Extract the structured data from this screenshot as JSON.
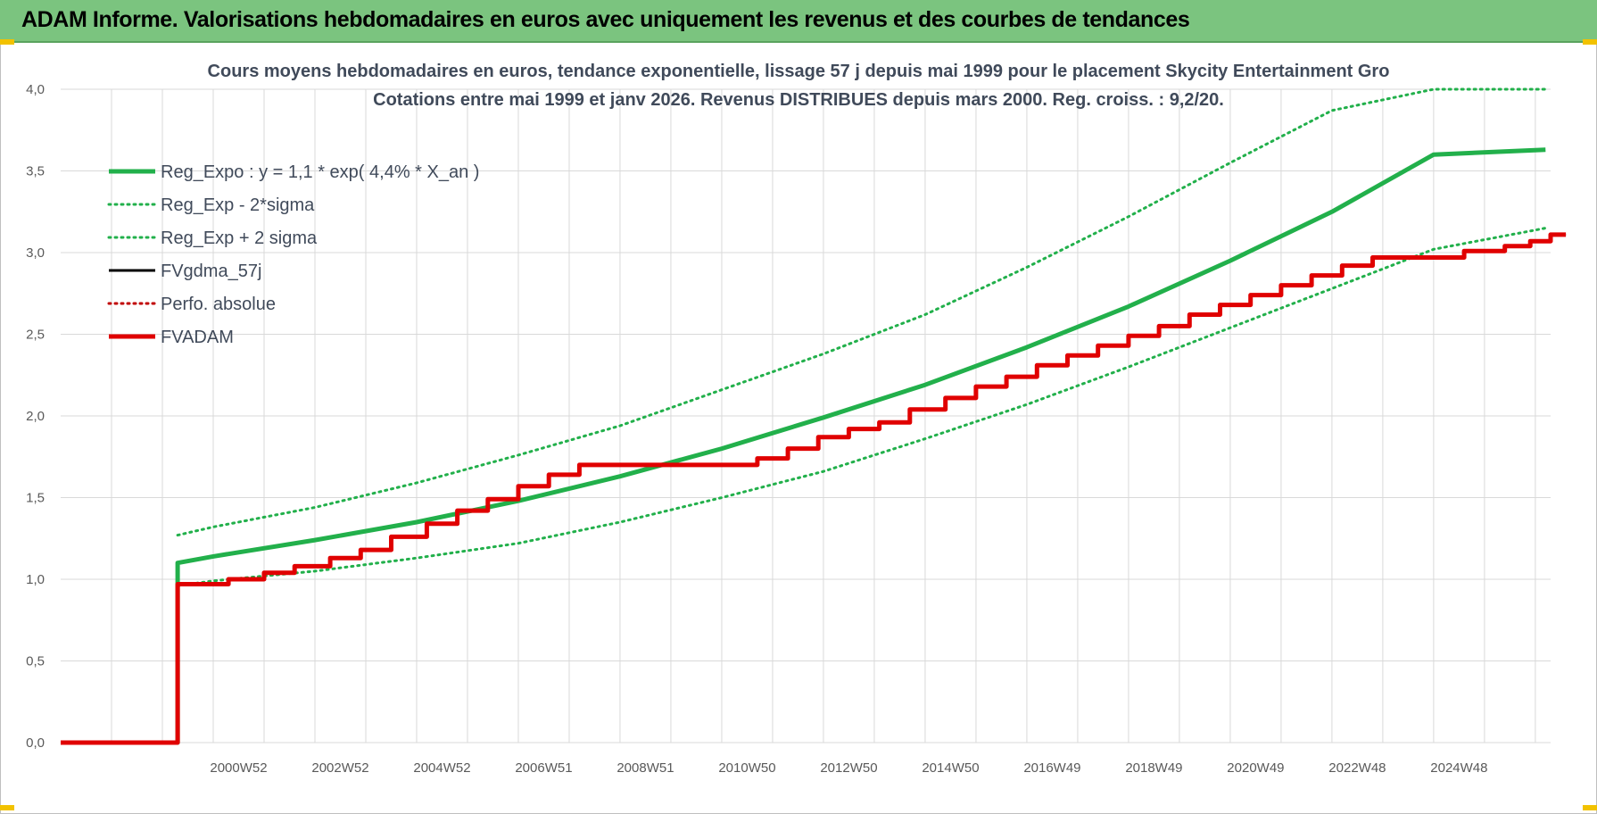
{
  "header": {
    "title": "ADAM Informe. Valorisations hebdomadaires en euros avec uniquement les revenus et des courbes de tendances"
  },
  "colors": {
    "header_bg": "#7bc47f",
    "trend_green": "#22b04b",
    "adam_red": "#e00000",
    "fvgdma_black": "#000000",
    "perfo_red": "#c00000",
    "grid": "#d9d9d9"
  },
  "chart_data": {
    "type": "line",
    "title": "Cours moyens hebdomadaires en euros, tendance exponentielle, lissage 57 j depuis mai 1999 pour le placement Skycity Entertainment Gro",
    "subtitle": "Cotations entre mai 1999 et janv 2026. Revenus DISTRIBUES depuis mars 2000. Reg. croiss. : 9,2/20.",
    "xlabel": "",
    "ylabel": "",
    "x_tick_labels": [
      "2000W52",
      "2002W52",
      "2004W52",
      "2006W51",
      "2008W51",
      "2010W50",
      "2012W50",
      "2014W50",
      "2016W49",
      "2018W49",
      "2020W49",
      "2022W48",
      "2024W48"
    ],
    "y_tick_labels": [
      "0,0",
      "0,5",
      "1,0",
      "1,5",
      "2,0",
      "2,5",
      "3,0",
      "3,5",
      "4,0"
    ],
    "ylim": [
      0,
      4
    ],
    "xlim": [
      1997.0,
      2026.3
    ],
    "grid": true,
    "legend_position": "top-left",
    "series": [
      {
        "name": "Reg_Expo : y = 1,1 * exp( 4,4% *  X_an )",
        "style": "solid-thick",
        "color": "#22b04b",
        "points": [
          [
            1997.0,
            0
          ],
          [
            1999.3,
            0
          ],
          [
            1999.3,
            1.1
          ],
          [
            2000,
            1.14
          ],
          [
            2002,
            1.24
          ],
          [
            2004,
            1.35
          ],
          [
            2006,
            1.48
          ],
          [
            2008,
            1.63
          ],
          [
            2010,
            1.8
          ],
          [
            2012,
            1.99
          ],
          [
            2014,
            2.19
          ],
          [
            2016,
            2.42
          ],
          [
            2018,
            2.67
          ],
          [
            2020,
            2.95
          ],
          [
            2022,
            3.25
          ],
          [
            2024,
            3.6
          ],
          [
            2026.2,
            3.63
          ]
        ]
      },
      {
        "name": "Reg_Exp - 2*sigma",
        "style": "dotted",
        "color": "#22b04b",
        "points": [
          [
            1999.3,
            0.96
          ],
          [
            2000,
            0.99
          ],
          [
            2002,
            1.05
          ],
          [
            2004,
            1.13
          ],
          [
            2006,
            1.22
          ],
          [
            2008,
            1.35
          ],
          [
            2010,
            1.5
          ],
          [
            2012,
            1.66
          ],
          [
            2014,
            1.86
          ],
          [
            2016,
            2.07
          ],
          [
            2018,
            2.3
          ],
          [
            2020,
            2.54
          ],
          [
            2022,
            2.78
          ],
          [
            2024,
            3.02
          ],
          [
            2026.2,
            3.15
          ]
        ]
      },
      {
        "name": "Reg_Exp + 2 sigma",
        "style": "dotted",
        "color": "#22b04b",
        "points": [
          [
            1999.3,
            1.27
          ],
          [
            2000,
            1.32
          ],
          [
            2002,
            1.44
          ],
          [
            2004,
            1.59
          ],
          [
            2006,
            1.76
          ],
          [
            2008,
            1.94
          ],
          [
            2010,
            2.16
          ],
          [
            2012,
            2.38
          ],
          [
            2014,
            2.62
          ],
          [
            2016,
            2.91
          ],
          [
            2018,
            3.22
          ],
          [
            2020,
            3.55
          ],
          [
            2022,
            3.87
          ],
          [
            2024,
            4.0
          ],
          [
            2026.2,
            4.0
          ]
        ]
      },
      {
        "name": "FVgdma_57j",
        "style": "solid-thin",
        "color": "#000000",
        "points": [
          [
            1999.3,
            0.97
          ],
          [
            2000.3,
            0.97
          ],
          [
            2000.3,
            1.0
          ],
          [
            2001.0,
            1.0
          ],
          [
            2001.0,
            1.04
          ],
          [
            2001.6,
            1.04
          ],
          [
            2001.6,
            1.08
          ],
          [
            2002.3,
            1.08
          ],
          [
            2002.3,
            1.13
          ],
          [
            2002.9,
            1.13
          ],
          [
            2002.9,
            1.18
          ],
          [
            2003.5,
            1.18
          ],
          [
            2003.5,
            1.26
          ],
          [
            2004.2,
            1.26
          ],
          [
            2004.2,
            1.34
          ],
          [
            2004.8,
            1.34
          ],
          [
            2004.8,
            1.42
          ],
          [
            2005.4,
            1.42
          ],
          [
            2005.4,
            1.49
          ],
          [
            2006.0,
            1.49
          ],
          [
            2006.0,
            1.57
          ],
          [
            2006.6,
            1.57
          ],
          [
            2006.6,
            1.64
          ],
          [
            2007.2,
            1.64
          ],
          [
            2007.2,
            1.7
          ],
          [
            2010.7,
            1.7
          ],
          [
            2010.7,
            1.74
          ],
          [
            2011.3,
            1.74
          ],
          [
            2011.3,
            1.8
          ],
          [
            2011.9,
            1.8
          ],
          [
            2011.9,
            1.87
          ],
          [
            2012.5,
            1.87
          ],
          [
            2012.5,
            1.92
          ],
          [
            2013.1,
            1.92
          ],
          [
            2013.1,
            1.96
          ],
          [
            2013.7,
            1.96
          ],
          [
            2013.7,
            2.04
          ],
          [
            2014.4,
            2.04
          ],
          [
            2014.4,
            2.11
          ],
          [
            2015.0,
            2.11
          ],
          [
            2015.0,
            2.18
          ],
          [
            2015.6,
            2.18
          ],
          [
            2015.6,
            2.24
          ],
          [
            2016.2,
            2.24
          ],
          [
            2016.2,
            2.31
          ],
          [
            2016.8,
            2.31
          ],
          [
            2016.8,
            2.37
          ],
          [
            2017.4,
            2.37
          ],
          [
            2017.4,
            2.43
          ],
          [
            2018.0,
            2.43
          ],
          [
            2018.0,
            2.49
          ],
          [
            2018.6,
            2.49
          ],
          [
            2018.6,
            2.55
          ],
          [
            2019.2,
            2.55
          ],
          [
            2019.2,
            2.62
          ],
          [
            2019.8,
            2.62
          ],
          [
            2019.8,
            2.68
          ],
          [
            2020.4,
            2.68
          ],
          [
            2020.4,
            2.74
          ],
          [
            2021.0,
            2.74
          ],
          [
            2021.0,
            2.8
          ],
          [
            2021.6,
            2.8
          ],
          [
            2021.6,
            2.86
          ],
          [
            2022.2,
            2.86
          ],
          [
            2022.2,
            2.92
          ],
          [
            2022.8,
            2.92
          ],
          [
            2022.8,
            2.97
          ],
          [
            2024.6,
            2.97
          ],
          [
            2024.6,
            3.01
          ],
          [
            2025.4,
            3.01
          ],
          [
            2025.4,
            3.04
          ],
          [
            2025.9,
            3.04
          ],
          [
            2025.9,
            3.07
          ],
          [
            2026.3,
            3.07
          ],
          [
            2026.3,
            3.11
          ],
          [
            2026.6,
            3.11
          ]
        ]
      },
      {
        "name": "Perfo. absolue",
        "style": "dotted",
        "color": "#c00000",
        "points": []
      },
      {
        "name": "FVADAM",
        "style": "solid-thick",
        "color": "#e00000",
        "points": [
          [
            1997.0,
            0
          ],
          [
            1999.3,
            0
          ],
          [
            1999.3,
            0.97
          ],
          [
            2000.3,
            0.97
          ],
          [
            2000.3,
            1.0
          ],
          [
            2001.0,
            1.0
          ],
          [
            2001.0,
            1.04
          ],
          [
            2001.6,
            1.04
          ],
          [
            2001.6,
            1.08
          ],
          [
            2002.3,
            1.08
          ],
          [
            2002.3,
            1.13
          ],
          [
            2002.9,
            1.13
          ],
          [
            2002.9,
            1.18
          ],
          [
            2003.5,
            1.18
          ],
          [
            2003.5,
            1.26
          ],
          [
            2004.2,
            1.26
          ],
          [
            2004.2,
            1.34
          ],
          [
            2004.8,
            1.34
          ],
          [
            2004.8,
            1.42
          ],
          [
            2005.4,
            1.42
          ],
          [
            2005.4,
            1.49
          ],
          [
            2006.0,
            1.49
          ],
          [
            2006.0,
            1.57
          ],
          [
            2006.6,
            1.57
          ],
          [
            2006.6,
            1.64
          ],
          [
            2007.2,
            1.64
          ],
          [
            2007.2,
            1.7
          ],
          [
            2010.7,
            1.7
          ],
          [
            2010.7,
            1.74
          ],
          [
            2011.3,
            1.74
          ],
          [
            2011.3,
            1.8
          ],
          [
            2011.9,
            1.8
          ],
          [
            2011.9,
            1.87
          ],
          [
            2012.5,
            1.87
          ],
          [
            2012.5,
            1.92
          ],
          [
            2013.1,
            1.92
          ],
          [
            2013.1,
            1.96
          ],
          [
            2013.7,
            1.96
          ],
          [
            2013.7,
            2.04
          ],
          [
            2014.4,
            2.04
          ],
          [
            2014.4,
            2.11
          ],
          [
            2015.0,
            2.11
          ],
          [
            2015.0,
            2.18
          ],
          [
            2015.6,
            2.18
          ],
          [
            2015.6,
            2.24
          ],
          [
            2016.2,
            2.24
          ],
          [
            2016.2,
            2.31
          ],
          [
            2016.8,
            2.31
          ],
          [
            2016.8,
            2.37
          ],
          [
            2017.4,
            2.37
          ],
          [
            2017.4,
            2.43
          ],
          [
            2018.0,
            2.43
          ],
          [
            2018.0,
            2.49
          ],
          [
            2018.6,
            2.49
          ],
          [
            2018.6,
            2.55
          ],
          [
            2019.2,
            2.55
          ],
          [
            2019.2,
            2.62
          ],
          [
            2019.8,
            2.62
          ],
          [
            2019.8,
            2.68
          ],
          [
            2020.4,
            2.68
          ],
          [
            2020.4,
            2.74
          ],
          [
            2021.0,
            2.74
          ],
          [
            2021.0,
            2.8
          ],
          [
            2021.6,
            2.8
          ],
          [
            2021.6,
            2.86
          ],
          [
            2022.2,
            2.86
          ],
          [
            2022.2,
            2.92
          ],
          [
            2022.8,
            2.92
          ],
          [
            2022.8,
            2.97
          ],
          [
            2024.6,
            2.97
          ],
          [
            2024.6,
            3.01
          ],
          [
            2025.4,
            3.01
          ],
          [
            2025.4,
            3.04
          ],
          [
            2025.9,
            3.04
          ],
          [
            2025.9,
            3.07
          ],
          [
            2026.3,
            3.07
          ],
          [
            2026.3,
            3.11
          ],
          [
            2026.6,
            3.11
          ]
        ]
      }
    ]
  }
}
